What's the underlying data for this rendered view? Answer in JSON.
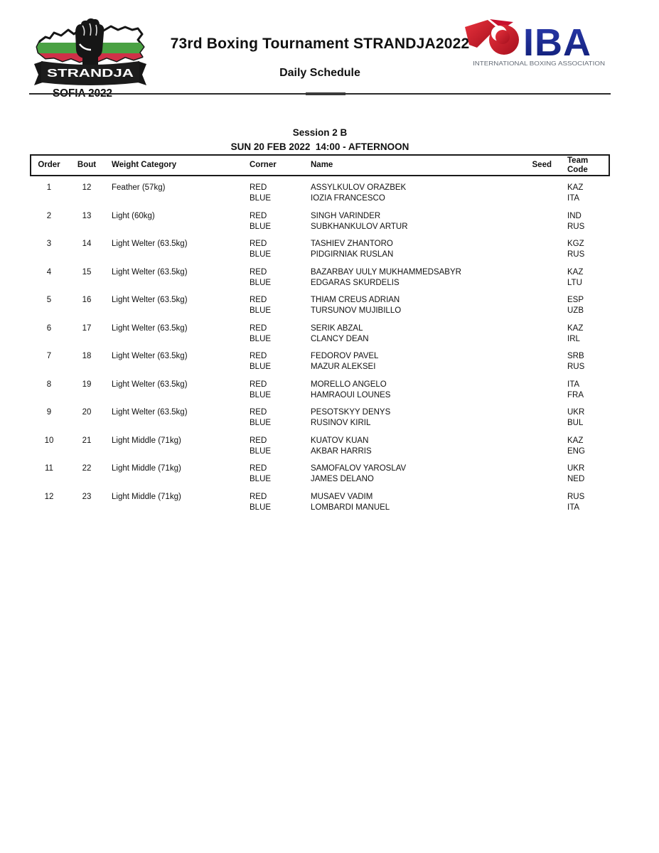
{
  "header": {
    "title": "73rd Boxing Tournament STRANDJA2022",
    "subtitle": "Daily Schedule",
    "strandja_logo": {
      "banner_text": "STRANDJA",
      "city_year": "SOFIA 2022",
      "flag_green": "#4aa143",
      "flag_red": "#cf3148",
      "ink": "#161616"
    },
    "iba_logo": {
      "acronym": "IBA",
      "full_name": "INTERNATIONAL BOXING ASSOCIATION",
      "brand_blue": "#1b2a8f",
      "brand_red": "#c8102e",
      "tagline_gray": "#646b76"
    }
  },
  "session": {
    "title": "Session 2 B",
    "datetime": "SUN 20 FEB 2022  14:00 - AFTERNOON"
  },
  "table": {
    "columns": [
      "Order",
      "Bout",
      "Weight Category",
      "Corner",
      "Name",
      "Seed",
      "Team Code"
    ],
    "corner_labels": {
      "red": "RED",
      "blue": "BLUE"
    },
    "bouts": [
      {
        "order": "1",
        "bout": "12",
        "weight": "Feather (57kg)",
        "red": {
          "name": "ASSYLKULOV ORAZBEK",
          "seed": "",
          "team": "KAZ"
        },
        "blue": {
          "name": "IOZIA FRANCESCO",
          "seed": "",
          "team": "ITA"
        }
      },
      {
        "order": "2",
        "bout": "13",
        "weight": "Light (60kg)",
        "red": {
          "name": "SINGH VARINDER",
          "seed": "",
          "team": "IND"
        },
        "blue": {
          "name": "SUBKHANKULOV ARTUR",
          "seed": "",
          "team": "RUS"
        }
      },
      {
        "order": "3",
        "bout": "14",
        "weight": "Light Welter (63.5kg)",
        "red": {
          "name": "TASHIEV ZHANTORO",
          "seed": "",
          "team": "KGZ"
        },
        "blue": {
          "name": "PIDGIRNIAK RUSLAN",
          "seed": "",
          "team": "RUS"
        }
      },
      {
        "order": "4",
        "bout": "15",
        "weight": "Light Welter (63.5kg)",
        "red": {
          "name": "BAZARBAY UULY MUKHAMMEDSABYR",
          "seed": "",
          "team": "KAZ"
        },
        "blue": {
          "name": "EDGARAS SKURDELIS",
          "seed": "",
          "team": "LTU"
        }
      },
      {
        "order": "5",
        "bout": "16",
        "weight": "Light Welter (63.5kg)",
        "red": {
          "name": "THIAM CREUS ADRIAN",
          "seed": "",
          "team": "ESP"
        },
        "blue": {
          "name": "TURSUNOV MUJIBILLO",
          "seed": "",
          "team": "UZB"
        }
      },
      {
        "order": "6",
        "bout": "17",
        "weight": "Light Welter (63.5kg)",
        "red": {
          "name": "SERIK ABZAL",
          "seed": "",
          "team": "KAZ"
        },
        "blue": {
          "name": "CLANCY DEAN",
          "seed": "",
          "team": "IRL"
        }
      },
      {
        "order": "7",
        "bout": "18",
        "weight": "Light Welter (63.5kg)",
        "red": {
          "name": "FEDOROV PAVEL",
          "seed": "",
          "team": "SRB"
        },
        "blue": {
          "name": "MAZUR ALEKSEI",
          "seed": "",
          "team": "RUS"
        }
      },
      {
        "order": "8",
        "bout": "19",
        "weight": "Light Welter (63.5kg)",
        "red": {
          "name": "MORELLO ANGELO",
          "seed": "",
          "team": "ITA"
        },
        "blue": {
          "name": "HAMRAOUI LOUNES",
          "seed": "",
          "team": "FRA"
        }
      },
      {
        "order": "9",
        "bout": "20",
        "weight": "Light Welter (63.5kg)",
        "red": {
          "name": "PESOTSKYY DENYS",
          "seed": "",
          "team": "UKR"
        },
        "blue": {
          "name": "RUSINOV KIRIL",
          "seed": "",
          "team": "BUL"
        }
      },
      {
        "order": "10",
        "bout": "21",
        "weight": "Light Middle (71kg)",
        "red": {
          "name": "KUATOV KUAN",
          "seed": "",
          "team": "KAZ"
        },
        "blue": {
          "name": "AKBAR HARRIS",
          "seed": "",
          "team": "ENG"
        }
      },
      {
        "order": "11",
        "bout": "22",
        "weight": "Light Middle (71kg)",
        "red": {
          "name": "SAMOFALOV YAROSLAV",
          "seed": "",
          "team": "UKR"
        },
        "blue": {
          "name": "JAMES DELANO",
          "seed": "",
          "team": "NED"
        }
      },
      {
        "order": "12",
        "bout": "23",
        "weight": "Light Middle (71kg)",
        "red": {
          "name": "MUSAEV VADIM",
          "seed": "",
          "team": "RUS"
        },
        "blue": {
          "name": "LOMBARDI MANUEL",
          "seed": "",
          "team": "ITA"
        }
      }
    ]
  }
}
